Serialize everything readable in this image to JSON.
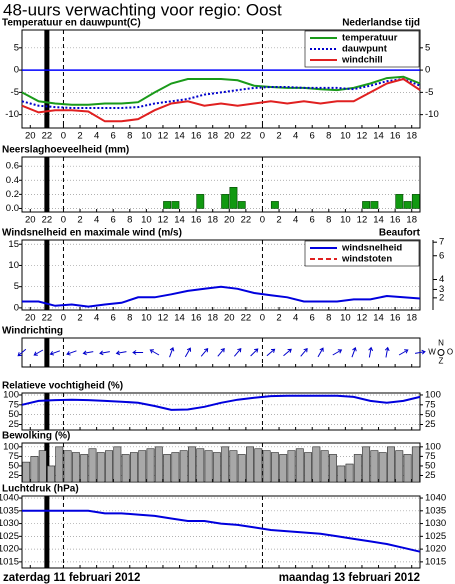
{
  "title": "48-uurs verwachting voor regio: Oost",
  "dates": [
    "zaterdag 11 februari 2012",
    "maandag 13 februari 2012"
  ],
  "time_axis": {
    "xlim": [
      -5,
      43
    ],
    "now": -2,
    "day_boundaries": [
      0,
      24
    ],
    "xticks": [
      {
        "value": -4,
        "label": "20"
      },
      {
        "value": -2,
        "label": "22"
      },
      0,
      2,
      4,
      6,
      8,
      10,
      12,
      14,
      16,
      18,
      20,
      22,
      {
        "value": 24,
        "label": "0"
      },
      {
        "value": 26,
        "label": "2"
      },
      {
        "value": 28,
        "label": "4"
      },
      {
        "value": 30,
        "label": "6"
      },
      {
        "value": 32,
        "label": "8"
      },
      {
        "value": 34,
        "label": "10"
      },
      {
        "value": 36,
        "label": "12"
      },
      {
        "value": 38,
        "label": "14"
      },
      {
        "value": 40,
        "label": "16"
      },
      {
        "value": 42,
        "label": "18"
      }
    ],
    "x": [
      -5,
      -3,
      -1,
      1,
      3,
      5,
      7,
      9,
      11,
      13,
      15,
      17,
      19,
      21,
      23,
      25,
      27,
      29,
      31,
      33,
      35,
      37,
      39,
      41,
      43
    ]
  },
  "chart_data": [
    {
      "type": "line",
      "title": "Temperatuur en dauwpunt(C)",
      "note": "Nederlandse tijd",
      "ylim": [
        -13,
        9
      ],
      "yticks": [
        5,
        0,
        -5,
        -10
      ],
      "right_ticks": true,
      "xtick_labels": true,
      "grid": true,
      "legend": "upper right",
      "reference_line": {
        "value": 0,
        "color": "#0000ff"
      },
      "series": [
        {
          "name": "temperatuur",
          "color": "#1a9a1a",
          "style": "solid",
          "values": [
            -5,
            -7,
            -7.5,
            -7.8,
            -7.8,
            -7.5,
            -7.5,
            -7.2,
            -5,
            -3,
            -2,
            -2,
            -2,
            -2.3,
            -3.5,
            -3.8,
            -4,
            -4,
            -4.3,
            -4.5,
            -4,
            -3,
            -1.8,
            -1.5,
            -3
          ]
        },
        {
          "name": "dauwpunt",
          "color": "#0000cc",
          "style": "dotted",
          "values": [
            -7,
            -8,
            -8.3,
            -8.5,
            -8.5,
            -8.5,
            -8.5,
            -8.3,
            -7.5,
            -7,
            -6.5,
            -5.5,
            -5,
            -4.5,
            -4,
            -3.8,
            -3.8,
            -4,
            -4,
            -4,
            -4.3,
            -3.5,
            -2.5,
            -2,
            -3.5
          ]
        },
        {
          "name": "windchill",
          "color": "#e02020",
          "style": "solid",
          "values": [
            -8,
            -9.5,
            -9,
            -9,
            -9.3,
            -11.5,
            -11.5,
            -11,
            -9,
            -7.5,
            -7,
            -8,
            -7.5,
            -8,
            -7.5,
            -7,
            -7.5,
            -7,
            -7.5,
            -7,
            -7,
            -5,
            -3,
            -2,
            -4.5
          ]
        }
      ]
    },
    {
      "type": "bar",
      "title": "Neerslaghoeveelheid (mm)",
      "ylim": [
        -0.05,
        0.73
      ],
      "yticks": [
        0.6,
        0.4,
        0.2,
        {
          "value": 0,
          "label": "0.0"
        }
      ],
      "xtick_labels": true,
      "grid": true,
      "color": "#119911",
      "edgecolor": "#004400",
      "x": [
        12,
        13,
        16,
        19,
        20,
        21,
        25,
        36,
        37,
        40,
        41,
        42
      ],
      "values": [
        0.1,
        0.1,
        0.2,
        0.2,
        0.3,
        0.1,
        0.1,
        0.1,
        0.1,
        0.2,
        0.1,
        0.2
      ]
    },
    {
      "type": "line",
      "title": "Windsnelheid en maximale wind (m/s)",
      "note": "Beaufort",
      "ylim": [
        -0.5,
        16
      ],
      "yticks": [
        15,
        10,
        5,
        0
      ],
      "y2ticks": [
        7,
        6,
        4,
        3,
        2
      ],
      "xtick_labels": true,
      "grid": true,
      "legend": "upper right",
      "series": [
        {
          "name": "windsnelheid",
          "color": "#0000dd",
          "style": "solid",
          "values": [
            1.5,
            1.5,
            0.5,
            0.8,
            0.3,
            0.8,
            1.2,
            2.5,
            2.5,
            3.2,
            4,
            4.5,
            5,
            4.5,
            3.5,
            3,
            2.5,
            1.5,
            1.5,
            1.5,
            2,
            2,
            2.8,
            2.5,
            2.2
          ]
        },
        {
          "name": "windstoten",
          "color": "#e02020",
          "style": "dashed",
          "values": [
            null,
            null,
            null,
            null,
            null,
            null,
            null,
            null,
            null,
            null,
            null,
            null,
            null,
            null,
            null,
            null,
            null,
            null,
            null,
            null,
            null,
            null,
            null,
            null,
            null
          ]
        }
      ]
    },
    {
      "type": "arrows",
      "title": "Windrichting",
      "color": "#0000cc",
      "compass": [
        "N",
        "W",
        "Z",
        "O"
      ],
      "values": [
        230,
        240,
        250,
        250,
        260,
        260,
        260,
        270,
        300,
        20,
        30,
        40,
        40,
        40,
        45,
        50,
        50,
        40,
        30,
        60,
        20,
        10,
        10,
        60,
        80
      ]
    },
    {
      "type": "line",
      "title": "Relatieve vochtigheid (%)",
      "ylim": [
        11,
        105
      ],
      "yticks": [
        100,
        75,
        50,
        25
      ],
      "right_ticks": true,
      "grid": true,
      "color": "#0000dd",
      "values": [
        75,
        85,
        87,
        88,
        87,
        85,
        83,
        80,
        72,
        62,
        63,
        70,
        80,
        88,
        93,
        97,
        98,
        98,
        98,
        98,
        95,
        85,
        80,
        85,
        95
      ]
    },
    {
      "type": "bar",
      "title": "Bewolking (%)",
      "ylim": [
        8,
        110
      ],
      "yticks": [
        100,
        75,
        50,
        25
      ],
      "right_ticks": true,
      "grid": true,
      "color": "#a8a8a8",
      "edgecolor": "#222222",
      "x": [
        -5,
        -4,
        -3,
        -2,
        -1,
        0,
        1,
        2,
        3,
        4,
        5,
        6,
        7,
        8,
        9,
        10,
        11,
        12,
        13,
        14,
        15,
        16,
        17,
        18,
        19,
        20,
        21,
        22,
        23,
        24,
        25,
        26,
        27,
        28,
        29,
        30,
        31,
        32,
        33,
        34,
        35,
        36,
        37,
        38,
        39,
        40,
        41,
        42
      ],
      "values": [
        60,
        75,
        90,
        50,
        100,
        90,
        85,
        80,
        95,
        85,
        90,
        100,
        80,
        85,
        90,
        95,
        100,
        80,
        85,
        90,
        100,
        95,
        90,
        85,
        100,
        90,
        80,
        100,
        95,
        90,
        85,
        80,
        90,
        95,
        85,
        100,
        90,
        80,
        50,
        55,
        80,
        100,
        90,
        85,
        100,
        90,
        80,
        100
      ]
    },
    {
      "type": "line",
      "title": "Luchtdruk (hPa)",
      "ylim": [
        1012.6,
        1040.8
      ],
      "yticks": [
        1040,
        1035,
        1030,
        1025,
        1020,
        1015
      ],
      "right_ticks": true,
      "grid": true,
      "color": "#0000dd",
      "values": [
        1035,
        1035,
        1035,
        1035,
        1035,
        1034,
        1034,
        1033.5,
        1033,
        1032,
        1031,
        1031,
        1030,
        1029.5,
        1028.5,
        1027.5,
        1027,
        1026.5,
        1026,
        1025,
        1024,
        1023,
        1022,
        1020.5,
        1019
      ]
    }
  ]
}
